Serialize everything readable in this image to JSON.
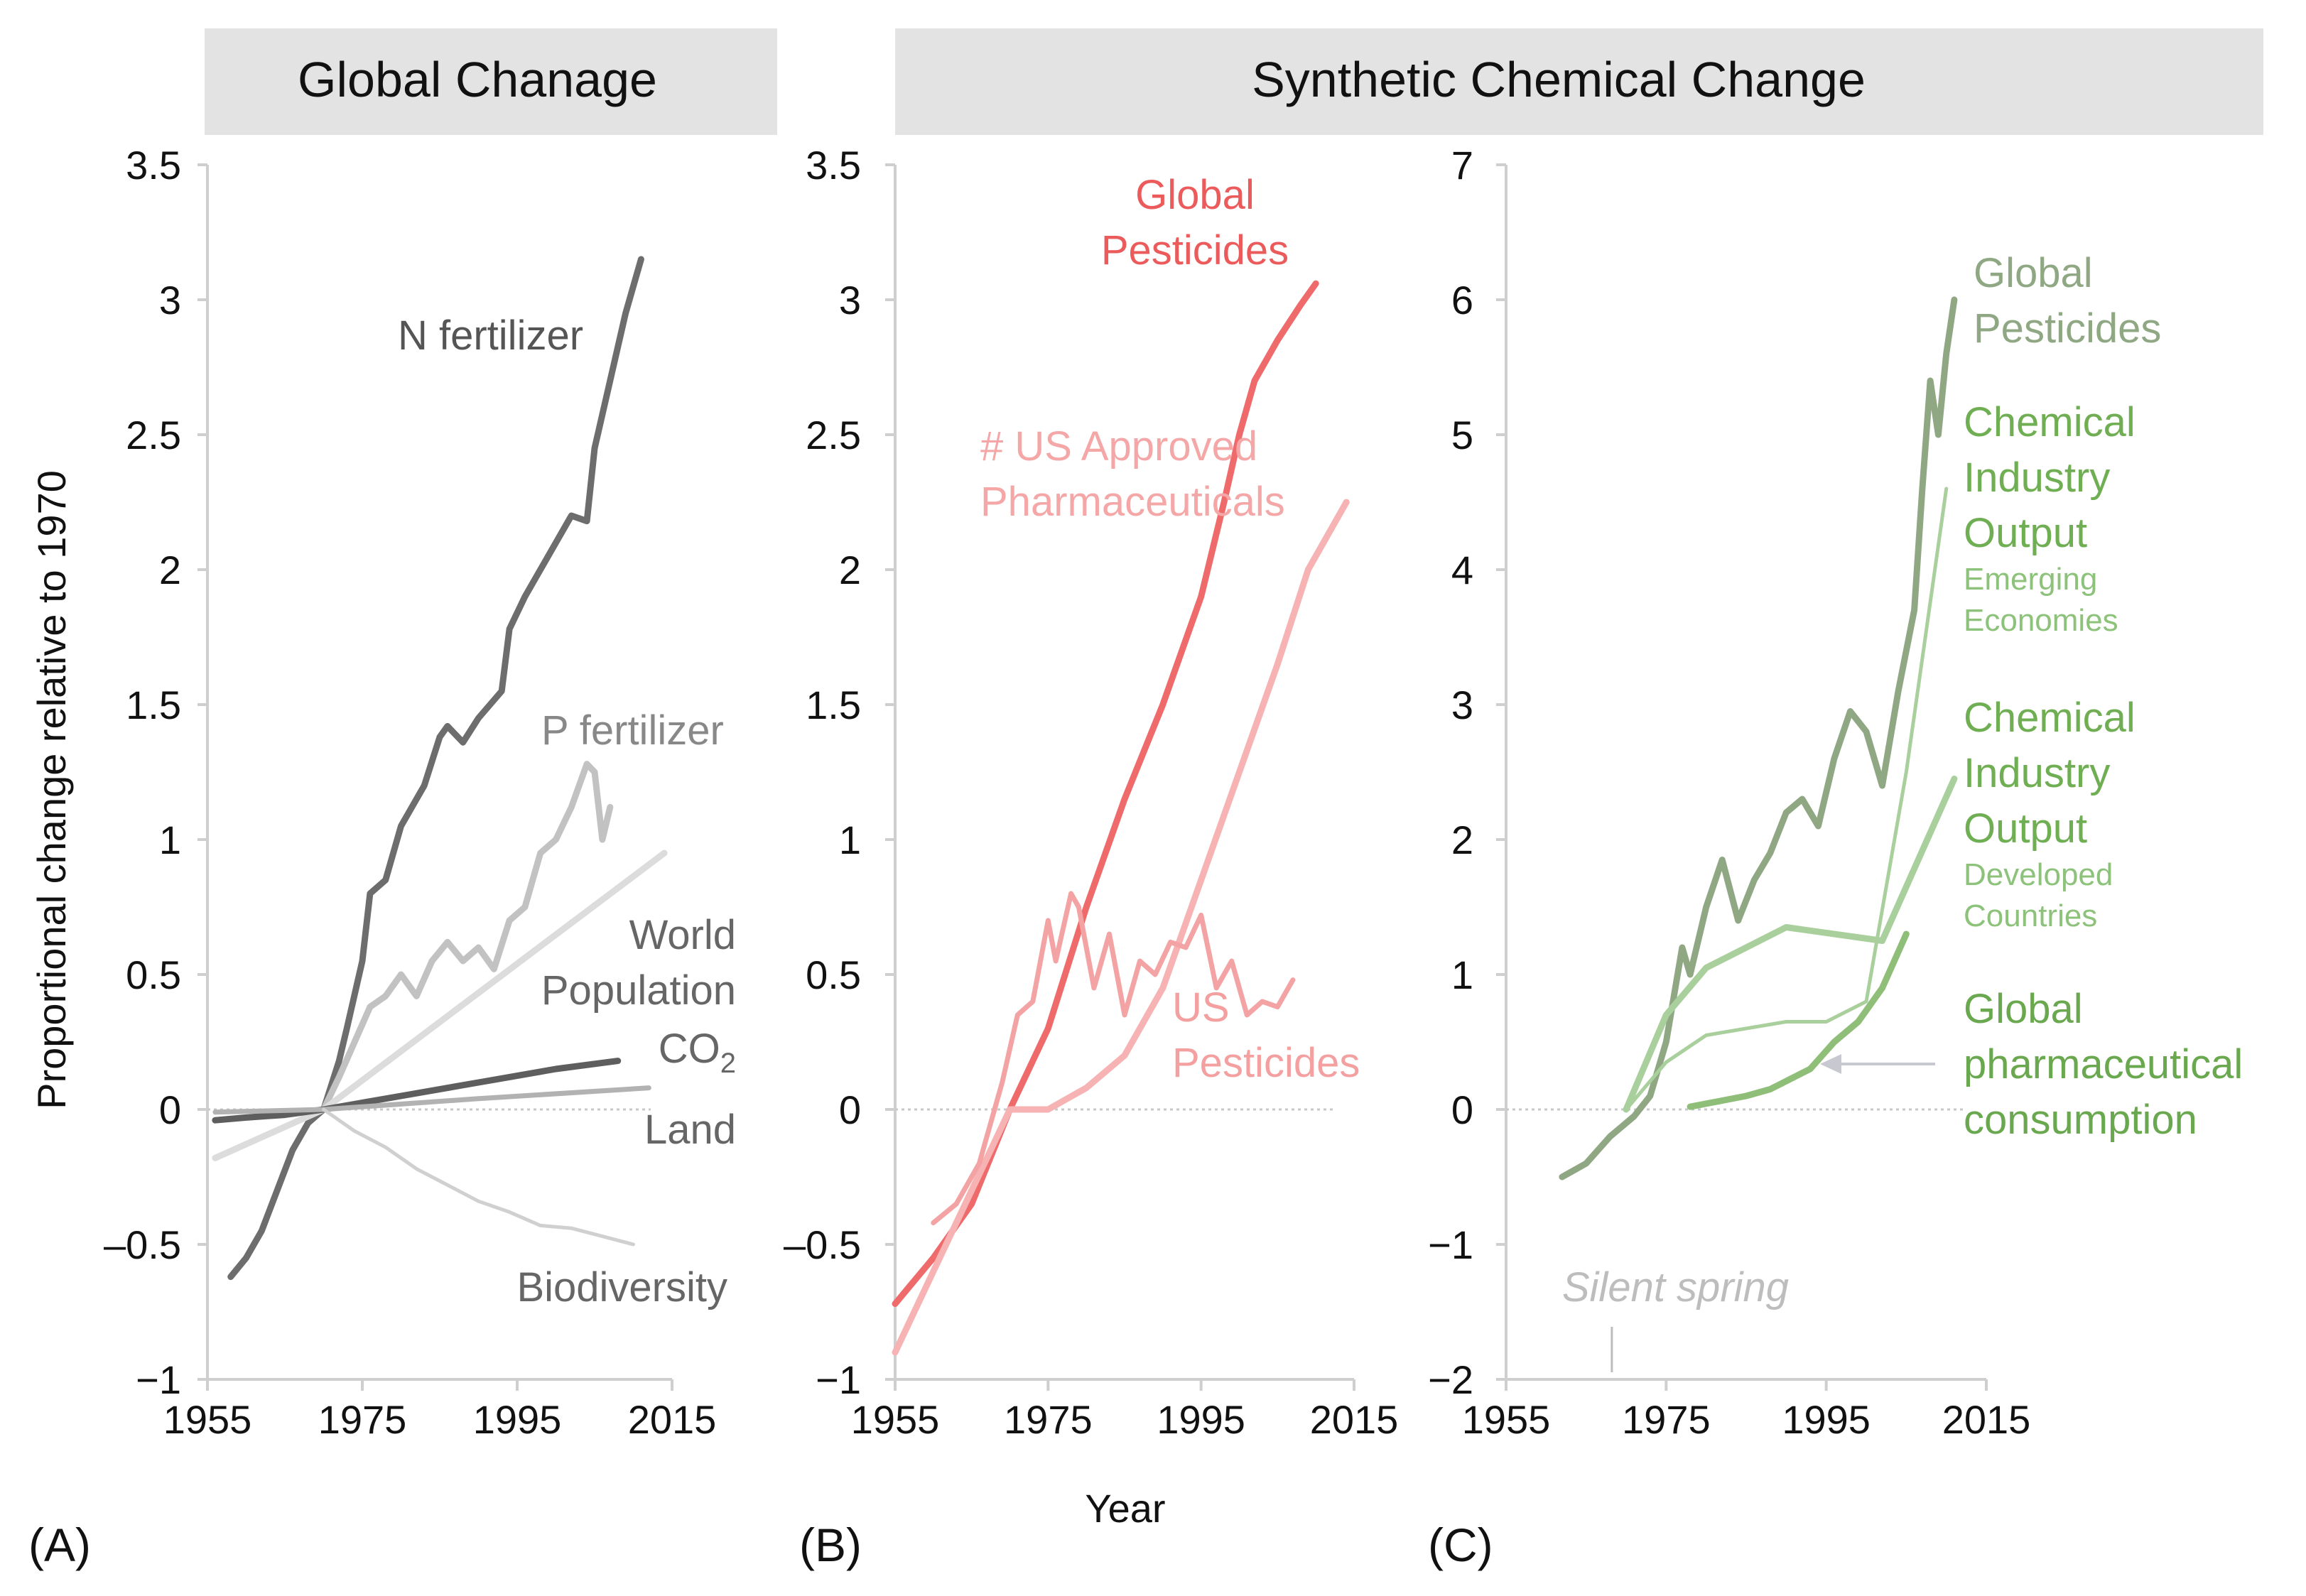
{
  "headers": {
    "left": "Global Chanage",
    "right": "Synthetic Chemical Change"
  },
  "x_axis_title": "Year",
  "y_axis_title": "Proportional change relative to 1970",
  "chart_data": [
    {
      "panel": "(A)",
      "type": "line",
      "xlim": [
        1955,
        2015
      ],
      "ylim": [
        -1,
        3.5
      ],
      "x_ticks": [
        "1955",
        "1975",
        "1995",
        "2015"
      ],
      "y_ticks": [
        "−1",
        "–0.5",
        "0",
        "0.5",
        "1",
        "1.5",
        "2",
        "2.5",
        "3",
        "3.5"
      ],
      "y_tick_values": [
        -1,
        -0.5,
        0,
        0.5,
        1,
        1.5,
        2,
        2.5,
        3,
        3.5
      ],
      "baseline": 0,
      "series": [
        {
          "name": "N fertilizer",
          "label": [
            "N fertilizer"
          ],
          "color": "#6d6d6d",
          "width": 9,
          "x": [
            1958,
            1960,
            1962,
            1964,
            1966,
            1968,
            1970,
            1972,
            1973,
            1975,
            1976,
            1978,
            1980,
            1981,
            1983,
            1985,
            1986,
            1988,
            1990,
            1993,
            1994,
            1996,
            1998,
            2000,
            2002,
            2004,
            2005,
            2007,
            2009,
            2011
          ],
          "y": [
            -0.62,
            -0.55,
            -0.45,
            -0.3,
            -0.15,
            -0.05,
            0.0,
            0.18,
            0.3,
            0.55,
            0.8,
            0.85,
            1.05,
            1.1,
            1.2,
            1.38,
            1.42,
            1.36,
            1.45,
            1.55,
            1.78,
            1.9,
            2.0,
            2.1,
            2.2,
            2.18,
            2.45,
            2.7,
            2.95,
            3.15
          ]
        },
        {
          "name": "P fertilizer",
          "label": [
            "P fertilizer"
          ],
          "color": "#c2c2c2",
          "width": 9,
          "x": [
            1970,
            1972,
            1974,
            1976,
            1978,
            1980,
            1982,
            1984,
            1986,
            1988,
            1990,
            1992,
            1994,
            1996,
            1998,
            2000,
            2002,
            2004,
            2005,
            2006,
            2007
          ],
          "y": [
            0.0,
            0.12,
            0.25,
            0.38,
            0.42,
            0.5,
            0.42,
            0.55,
            0.62,
            0.55,
            0.6,
            0.52,
            0.7,
            0.75,
            0.95,
            1.0,
            1.12,
            1.28,
            1.25,
            1.0,
            1.12
          ]
        },
        {
          "name": "World Population",
          "label": [
            "World",
            "Population"
          ],
          "color": "#dcdcdc",
          "width": 9,
          "x": [
            1956,
            1970,
            2014
          ],
          "y": [
            -0.18,
            0.0,
            0.95
          ]
        },
        {
          "name": "CO2",
          "label": [
            "CO2"
          ],
          "color": "#5e5e5e",
          "width": 9,
          "x": [
            1956,
            1960,
            1965,
            1970,
            1980,
            1990,
            2000,
            2008
          ],
          "y": [
            -0.04,
            -0.03,
            -0.02,
            0.0,
            0.05,
            0.1,
            0.15,
            0.18
          ]
        },
        {
          "name": "Land",
          "label": [
            "Land"
          ],
          "color": "#b2b2b2",
          "width": 7,
          "x": [
            1956,
            1970,
            1990,
            2012
          ],
          "y": [
            -0.01,
            0.0,
            0.04,
            0.08
          ]
        },
        {
          "name": "Biodiversity",
          "label": [
            "Biodiversity"
          ],
          "color": "#d0d0d0",
          "width": 5,
          "x": [
            1970,
            1974,
            1978,
            1982,
            1986,
            1990,
            1994,
            1998,
            2002,
            2006,
            2010
          ],
          "y": [
            0.0,
            -0.08,
            -0.14,
            -0.22,
            -0.28,
            -0.34,
            -0.38,
            -0.43,
            -0.44,
            -0.47,
            -0.5
          ]
        }
      ]
    },
    {
      "panel": "(B)",
      "type": "line",
      "xlim": [
        1955,
        2015
      ],
      "ylim": [
        -1,
        3.5
      ],
      "x_ticks": [
        "1955",
        "1975",
        "1995",
        "2015"
      ],
      "y_ticks": [
        "−1",
        "–0.5",
        "0",
        "0.5",
        "1",
        "1.5",
        "2",
        "2.5",
        "3",
        "3.5"
      ],
      "y_tick_values": [
        -1,
        -0.5,
        0,
        0.5,
        1,
        1.5,
        2,
        2.5,
        3,
        3.5
      ],
      "baseline": 0,
      "series": [
        {
          "name": "Global Pesticides",
          "label": [
            "Global",
            "Pesticides"
          ],
          "color": "#ef6b6b",
          "width": 9,
          "x": [
            1955,
            1960,
            1965,
            1970,
            1975,
            1980,
            1985,
            1990,
            1995,
            1998,
            2000,
            2002,
            2005,
            2008,
            2010
          ],
          "y": [
            -0.72,
            -0.55,
            -0.35,
            0.0,
            0.3,
            0.75,
            1.15,
            1.5,
            1.9,
            2.25,
            2.5,
            2.7,
            2.85,
            2.98,
            3.06
          ]
        },
        {
          "name": "# US Approved Pharmaceuticals",
          "label": [
            "# US Approved",
            "Pharmaceuticals"
          ],
          "color": "#f7b3b3",
          "width": 9,
          "x": [
            1955,
            1960,
            1965,
            1970,
            1975,
            1980,
            1985,
            1990,
            1995,
            2000,
            2005,
            2009,
            2014
          ],
          "y": [
            -0.9,
            -0.6,
            -0.3,
            0.0,
            0.0,
            0.08,
            0.2,
            0.45,
            0.85,
            1.25,
            1.65,
            2.0,
            2.25
          ]
        },
        {
          "name": "US Pesticides",
          "label": [
            "US",
            "Pesticides"
          ],
          "color": "#f3a3a3",
          "width": 7,
          "x": [
            1960,
            1963,
            1966,
            1969,
            1971,
            1973,
            1975,
            1976,
            1978,
            1979,
            1981,
            1983,
            1985,
            1987,
            1989,
            1991,
            1993,
            1995,
            1997,
            1999,
            2001,
            2003,
            2005,
            2007
          ],
          "y": [
            -0.42,
            -0.35,
            -0.2,
            0.1,
            0.35,
            0.4,
            0.7,
            0.55,
            0.8,
            0.75,
            0.45,
            0.65,
            0.35,
            0.55,
            0.5,
            0.62,
            0.6,
            0.72,
            0.45,
            0.55,
            0.35,
            0.4,
            0.38,
            0.48
          ]
        }
      ]
    },
    {
      "panel": "(C)",
      "type": "line",
      "xlim": [
        1955,
        2015
      ],
      "ylim": [
        -2,
        7
      ],
      "x_ticks": [
        "1955",
        "1975",
        "1995",
        "2015"
      ],
      "y_ticks": [
        "−2",
        "−1",
        "0",
        "1",
        "2",
        "3",
        "4",
        "5",
        "6",
        "7"
      ],
      "y_tick_values": [
        -2,
        -1,
        0,
        1,
        2,
        3,
        4,
        5,
        6,
        7
      ],
      "baseline": 0,
      "annotation": {
        "text": "Silent spring",
        "x": 1962
      },
      "series": [
        {
          "name": "Global Pesticides",
          "label": [
            "Global",
            "Pesticides"
          ],
          "color": "#8fa883",
          "width": 9,
          "x": [
            1962,
            1965,
            1968,
            1971,
            1973,
            1975,
            1977,
            1978,
            1980,
            1982,
            1984,
            1986,
            1988,
            1990,
            1992,
            1994,
            1996,
            1998,
            2000,
            2002,
            2004,
            2006,
            2007,
            2008,
            2009,
            2010,
            2011
          ],
          "y": [
            -0.5,
            -0.4,
            -0.2,
            -0.05,
            0.1,
            0.5,
            1.2,
            1.0,
            1.5,
            1.85,
            1.4,
            1.7,
            1.9,
            2.2,
            2.3,
            2.1,
            2.6,
            2.95,
            2.8,
            2.4,
            3.1,
            3.7,
            4.6,
            5.4,
            5.0,
            5.6,
            6.0
          ]
        },
        {
          "name": "Chemical Industry Output Emerging Economies",
          "label": [
            "Chemical",
            "Industry",
            "Output"
          ],
          "sublabel": [
            "Emerging",
            "Economies"
          ],
          "color": "#a9d09c",
          "width": 5,
          "x": [
            1970,
            1975,
            1980,
            1990,
            1995,
            2000,
            2005,
            2010
          ],
          "y": [
            0.0,
            0.35,
            0.55,
            0.65,
            0.65,
            0.8,
            2.5,
            4.6
          ]
        },
        {
          "name": "Chemical Industry Output Developed Countries",
          "label": [
            "Chemical",
            "Industry",
            "Output"
          ],
          "sublabel": [
            "Developed",
            "Countries"
          ],
          "color": "#a9d09c",
          "width": 9,
          "x": [
            1970,
            1975,
            1980,
            1990,
            2002,
            2011
          ],
          "y": [
            0.0,
            0.7,
            1.05,
            1.35,
            1.25,
            2.45
          ]
        },
        {
          "name": "Global pharmaceutical consumption",
          "label": [
            "Global",
            "pharmaceutical",
            "consumption"
          ],
          "color": "#8fbe78",
          "width": 9,
          "x": [
            1978,
            1985,
            1988,
            1993,
            1996,
            1999,
            2002,
            2005
          ],
          "y": [
            0.02,
            0.1,
            0.15,
            0.3,
            0.5,
            0.65,
            0.9,
            1.3
          ]
        }
      ]
    }
  ]
}
